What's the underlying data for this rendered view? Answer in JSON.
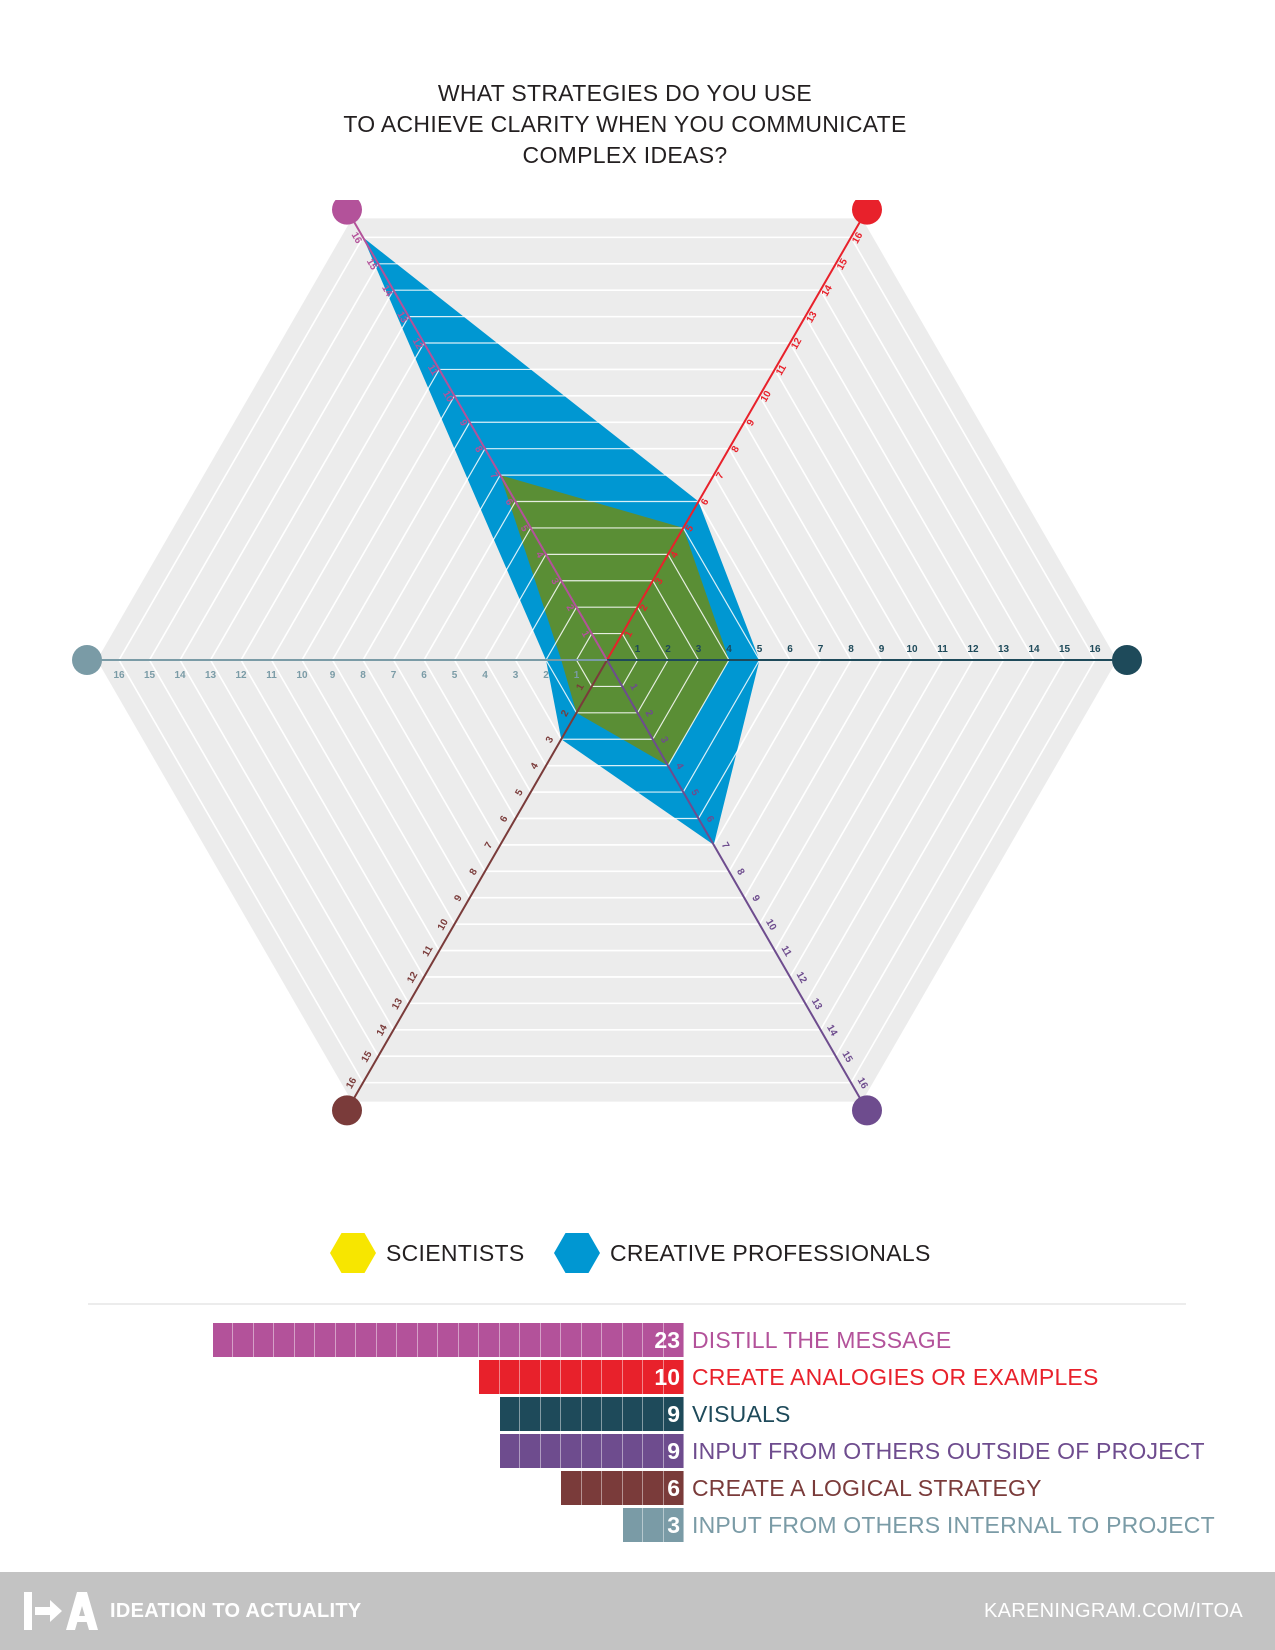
{
  "title_lines": [
    "WHAT STRATEGIES DO YOU USE",
    "TO ACHIEVE CLARITY WHEN YOU COMMUNICATE",
    "COMPLEX IDEAS?"
  ],
  "chart_data": {
    "type": "radar",
    "axis_max": 16,
    "axes": [
      {
        "key": "distill",
        "color": "#b3529a"
      },
      {
        "key": "analogies",
        "color": "#e8212b"
      },
      {
        "key": "visuals",
        "color": "#1e4a5a"
      },
      {
        "key": "outside",
        "color": "#6e4c8e"
      },
      {
        "key": "logical",
        "color": "#7a3b3a"
      },
      {
        "key": "internal",
        "color": "#7a9ba6"
      }
    ],
    "tick_labels": [
      "1",
      "2",
      "3",
      "4",
      "5",
      "6",
      "7",
      "8",
      "9",
      "10",
      "11",
      "12",
      "13",
      "14",
      "15",
      "16"
    ],
    "series": [
      {
        "name": "CREATIVE PROFESSIONALS",
        "color": "#0097d2",
        "values": [
          16,
          6,
          5,
          7,
          3,
          2
        ]
      },
      {
        "name": "SCIENTISTS",
        "color": "#f7e600",
        "values": [
          7,
          5,
          4,
          4,
          2,
          1.5
        ]
      }
    ],
    "overlap_color": "#5a8e35"
  },
  "legend": [
    {
      "label": "SCIENTISTS",
      "color": "#f7e600"
    },
    {
      "label": "CREATIVE PROFESSIONALS",
      "color": "#0097d2"
    }
  ],
  "bars": [
    {
      "value": 23,
      "label": "DISTILL THE MESSAGE",
      "color": "#b3529a"
    },
    {
      "value": 10,
      "label": "CREATE ANALOGIES OR EXAMPLES",
      "color": "#e8212b"
    },
    {
      "value": 9,
      "label": "VISUALS",
      "color": "#1e4a5a"
    },
    {
      "value": 9,
      "label": "INPUT FROM OTHERS OUTSIDE OF PROJECT",
      "color": "#6e4c8e"
    },
    {
      "value": 6,
      "label": "CREATE A LOGICAL STRATEGY",
      "color": "#7a3b3a"
    },
    {
      "value": 3,
      "label": "INPUT FROM OTHERS INTERNAL TO PROJECT",
      "color": "#7a9ba6"
    }
  ],
  "footer": {
    "logo_text": "I+A",
    "brand": "IDEATION TO ACTUALITY",
    "url": "KARENINGRAM.COM/ITOA"
  }
}
